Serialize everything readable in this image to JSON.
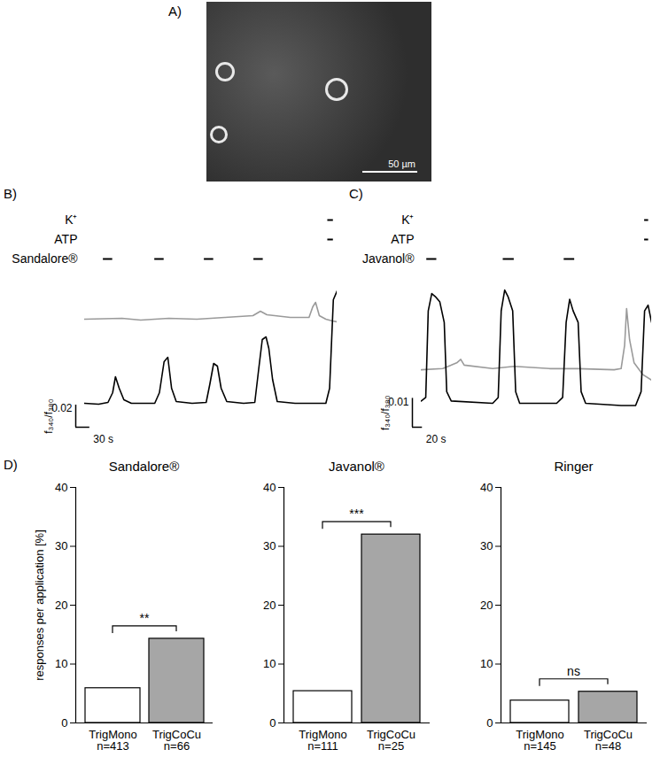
{
  "panel_a": {
    "panel_label": "A)",
    "scale_bar_label": "50 µm"
  },
  "chart_data": [
    {
      "type": "line",
      "panel_label": "B)",
      "tick_labels": false,
      "xlim": [
        0,
        540
      ],
      "ylim": [
        0,
        0.12
      ],
      "stimuli": [
        {
          "label": "K⁺",
          "periods": [
            [
              520,
              532
            ]
          ]
        },
        {
          "label": "ATP",
          "periods": [
            [
              520,
              532
            ]
          ]
        },
        {
          "label": "Sandalore®",
          "periods": [
            [
              40,
              60
            ],
            [
              150,
              170
            ],
            [
              256,
              276
            ],
            [
              362,
              382
            ]
          ]
        }
      ],
      "scale_bar": {
        "x": 30,
        "x_label": "30 s",
        "y": 0.02,
        "y_label": "0.02",
        "unit_label": "f₃₄₀/f₃₈₀"
      },
      "series": [
        {
          "color": "#9a9a9a",
          "x": [
            0,
            80,
            120,
            180,
            240,
            300,
            360,
            376,
            390,
            440,
            480,
            488,
            494,
            502,
            516,
            530,
            540
          ],
          "values": [
            0.0864,
            0.0872,
            0.0856,
            0.0872,
            0.0864,
            0.088,
            0.0896,
            0.0936,
            0.0904,
            0.088,
            0.088,
            0.0976,
            0.1016,
            0.0896,
            0.0864,
            0.0848,
            0.084
          ]
        },
        {
          "color": "#000000",
          "x": [
            0,
            30,
            50,
            60,
            66,
            74,
            84,
            100,
            150,
            160,
            170,
            178,
            186,
            196,
            230,
            260,
            268,
            276,
            284,
            292,
            304,
            340,
            364,
            372,
            380,
            388,
            394,
            402,
            412,
            450,
            490,
            516,
            524,
            532,
            540
          ],
          "values": [
            0.0104,
            0.0096,
            0.0112,
            0.02,
            0.0344,
            0.024,
            0.0136,
            0.0104,
            0.0104,
            0.02,
            0.048,
            0.052,
            0.024,
            0.012,
            0.0104,
            0.0112,
            0.028,
            0.0464,
            0.044,
            0.024,
            0.012,
            0.0104,
            0.0112,
            0.04,
            0.068,
            0.0704,
            0.06,
            0.032,
            0.012,
            0.0104,
            0.0104,
            0.0104,
            0.024,
            0.104,
            0.112
          ]
        }
      ]
    },
    {
      "type": "line",
      "panel_label": "C)",
      "tick_labels": false,
      "xlim": [
        0,
        461
      ],
      "ylim": [
        0,
        0.046
      ],
      "stimuli": [
        {
          "label": "K⁺",
          "periods": [
            [
              447,
              455
            ]
          ]
        },
        {
          "label": "ATP",
          "periods": [
            [
              447,
              455
            ]
          ]
        },
        {
          "label": "Javanol®",
          "periods": [
            [
              11,
              31
            ],
            [
              164,
              186
            ],
            [
              286,
              307
            ]
          ]
        }
      ],
      "scale_bar": {
        "x": 20,
        "x_label": "20 s",
        "y": 0.01,
        "y_label": "0.01",
        "unit_label": "f₃₄₀/f₃₈₀"
      },
      "series": [
        {
          "color": "#9a9a9a",
          "x": [
            0,
            43,
            71,
            79,
            86,
            143,
            186,
            257,
            314,
            386,
            400,
            407,
            411,
            417,
            426,
            443,
            461
          ],
          "values": [
            0.0156,
            0.016,
            0.018,
            0.0192,
            0.0172,
            0.016,
            0.0168,
            0.016,
            0.016,
            0.0156,
            0.016,
            0.024,
            0.0368,
            0.026,
            0.018,
            0.014,
            0.012
          ]
        },
        {
          "color": "#000000",
          "x": [
            0,
            9,
            14,
            21,
            29,
            37,
            46,
            51,
            60,
            143,
            154,
            160,
            167,
            174,
            183,
            189,
            197,
            271,
            283,
            290,
            297,
            304,
            314,
            320,
            329,
            400,
            429,
            440,
            447,
            454,
            461
          ],
          "values": [
            0.0048,
            0.006,
            0.036,
            0.042,
            0.0408,
            0.0392,
            0.032,
            0.008,
            0.0048,
            0.004,
            0.006,
            0.036,
            0.0432,
            0.0408,
            0.036,
            0.008,
            0.004,
            0.004,
            0.006,
            0.032,
            0.04,
            0.036,
            0.032,
            0.008,
            0.004,
            0.0032,
            0.0032,
            0.008,
            0.036,
            0.038,
            0.032
          ]
        }
      ]
    },
    {
      "type": "bar",
      "panel_label": "D)",
      "title": "Sandalore®",
      "y_label": "responses per application [%]",
      "categories": [
        "TrigMono\nn=413",
        "TrigCoCu\nn=66"
      ],
      "values": [
        5.9,
        14.3
      ],
      "colors": [
        "#ffffff",
        "#a6a6a6"
      ],
      "ylim": [
        0,
        40
      ],
      "yticks": [
        0,
        10,
        20,
        30,
        40
      ],
      "annotations": [
        {
          "from": 0,
          "to": 1,
          "label": "**"
        }
      ]
    },
    {
      "type": "bar",
      "title": "Javanol®",
      "categories": [
        "TrigMono\nn=111",
        "TrigCoCu\nn=25"
      ],
      "values": [
        5.4,
        32
      ],
      "colors": [
        "#ffffff",
        "#a6a6a6"
      ],
      "ylim": [
        0,
        40
      ],
      "yticks": [
        0,
        10,
        20,
        30,
        40
      ],
      "annotations": [
        {
          "from": 0,
          "to": 1,
          "label": "***"
        }
      ]
    },
    {
      "type": "bar",
      "title": "Ringer",
      "categories": [
        "TrigMono\nn=145",
        "TrigCoCu\nn=48"
      ],
      "values": [
        3.8,
        5.3
      ],
      "colors": [
        "#ffffff",
        "#a6a6a6"
      ],
      "ylim": [
        0,
        40
      ],
      "yticks": [
        0,
        10,
        20,
        30,
        40
      ],
      "annotations": [
        {
          "from": 0,
          "to": 1,
          "label": "ns"
        }
      ]
    }
  ]
}
